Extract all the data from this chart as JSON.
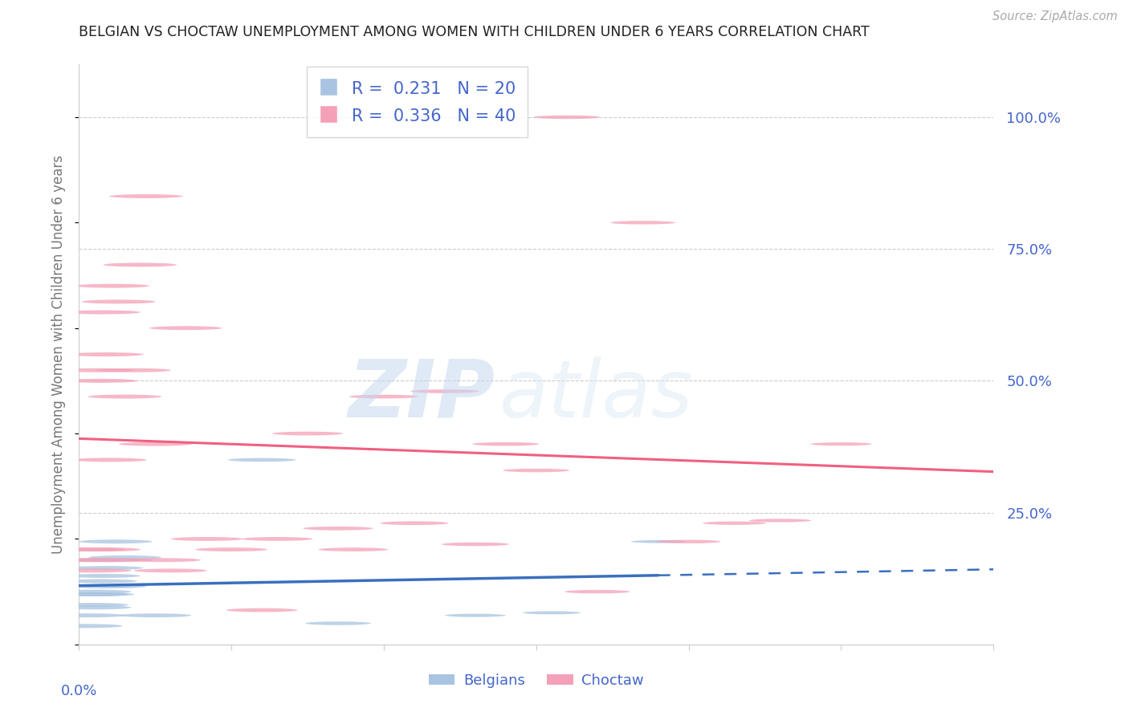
{
  "title": "BELGIAN VS CHOCTAW UNEMPLOYMENT AMONG WOMEN WITH CHILDREN UNDER 6 YEARS CORRELATION CHART",
  "source": "Source: ZipAtlas.com",
  "ylabel": "Unemployment Among Women with Children Under 6 years",
  "right_yticks": [
    "100.0%",
    "75.0%",
    "50.0%",
    "25.0%"
  ],
  "right_ytick_vals": [
    1.0,
    0.75,
    0.5,
    0.25
  ],
  "belgians_R": 0.231,
  "belgians_N": 20,
  "choctaw_R": 0.336,
  "choctaw_N": 40,
  "background_color": "#ffffff",
  "grid_color": "#cccccc",
  "belgian_color": "#a8c4e0",
  "choctaw_color": "#f4a0b8",
  "belgian_line_color": "#3a6fbf",
  "choctaw_line_color": "#f06080",
  "text_color": "#4466cc",
  "belgians_x": [
    0.002,
    0.003,
    0.004,
    0.004,
    0.005,
    0.005,
    0.006,
    0.007,
    0.008,
    0.008,
    0.009,
    0.01,
    0.012,
    0.015,
    0.025,
    0.06,
    0.085,
    0.13,
    0.155,
    0.19
  ],
  "belgians_y": [
    0.035,
    0.055,
    0.075,
    0.095,
    0.07,
    0.1,
    0.095,
    0.12,
    0.13,
    0.16,
    0.145,
    0.11,
    0.195,
    0.165,
    0.055,
    0.35,
    0.04,
    0.055,
    0.06,
    0.195
  ],
  "choctaw_x": [
    0.002,
    0.003,
    0.005,
    0.006,
    0.007,
    0.008,
    0.008,
    0.009,
    0.01,
    0.011,
    0.012,
    0.013,
    0.015,
    0.018,
    0.02,
    0.022,
    0.025,
    0.028,
    0.03,
    0.035,
    0.042,
    0.05,
    0.06,
    0.065,
    0.075,
    0.085,
    0.09,
    0.1,
    0.11,
    0.12,
    0.13,
    0.14,
    0.15,
    0.16,
    0.17,
    0.185,
    0.2,
    0.215,
    0.23,
    0.25
  ],
  "choctaw_y": [
    0.16,
    0.18,
    0.14,
    0.52,
    0.5,
    0.63,
    0.18,
    0.55,
    0.35,
    0.68,
    0.16,
    0.65,
    0.47,
    0.52,
    0.72,
    0.85,
    0.38,
    0.16,
    0.14,
    0.6,
    0.2,
    0.18,
    0.065,
    0.2,
    0.4,
    0.22,
    0.18,
    0.47,
    0.23,
    0.48,
    0.19,
    0.38,
    0.33,
    1.0,
    0.1,
    0.8,
    0.195,
    0.23,
    0.235,
    0.38
  ],
  "xmin": 0.0,
  "xmax": 0.3,
  "ymin": 0.0,
  "ymax": 1.1,
  "belgian_line_x_end": 0.19,
  "choctaw_line_x_end": 0.3
}
